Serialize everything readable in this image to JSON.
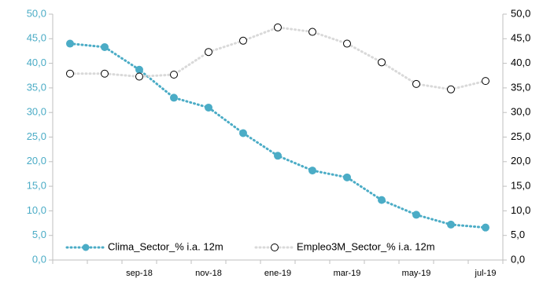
{
  "chart_data": {
    "type": "line",
    "categories": [
      null,
      null,
      "sep-18",
      null,
      "nov-18",
      null,
      "ene-19",
      null,
      "mar-19",
      null,
      "may-19",
      null,
      "jul-19"
    ],
    "series": [
      {
        "name": "Clima_Sector_% i.a. 12m",
        "color": "#4bacc6",
        "values": [
          44.0,
          43.3,
          38.7,
          33.0,
          31.0,
          25.8,
          21.2,
          18.2,
          16.8,
          12.2,
          9.2,
          7.2,
          6.6
        ]
      },
      {
        "name": "Empleo3M_Sector_% i.a. 12m",
        "color": "#d9d9d9",
        "axis": "y2",
        "values": [
          37.9,
          37.9,
          37.3,
          37.7,
          42.3,
          44.6,
          47.3,
          46.4,
          44.0,
          40.2,
          35.8,
          34.7,
          36.4
        ]
      }
    ],
    "ylim": [
      0,
      50
    ],
    "yticks": [
      {
        "value": 0,
        "label": "0,0"
      },
      {
        "value": 5,
        "label": "5,0"
      },
      {
        "value": 10,
        "label": "10,0"
      },
      {
        "value": 15,
        "label": "15,0"
      },
      {
        "value": 20,
        "label": "20,0"
      },
      {
        "value": 25,
        "label": "25,0"
      },
      {
        "value": 30,
        "label": "30,0"
      },
      {
        "value": 35,
        "label": "35,0"
      },
      {
        "value": 40,
        "label": "40,0"
      },
      {
        "value": 45,
        "label": "45,0"
      },
      {
        "value": 50,
        "label": "50,0"
      }
    ],
    "y2lim": [
      0,
      50
    ],
    "y2ticks": [
      {
        "value": 0,
        "label": "0,0"
      },
      {
        "value": 5,
        "label": "5,0"
      },
      {
        "value": 10,
        "label": "10,0"
      },
      {
        "value": 15,
        "label": "15,0"
      },
      {
        "value": 20,
        "label": "20,0"
      },
      {
        "value": 25,
        "label": "25,0"
      },
      {
        "value": 30,
        "label": "30,0"
      },
      {
        "value": 35,
        "label": "35,0"
      },
      {
        "value": 40,
        "label": "40,0"
      },
      {
        "value": 45,
        "label": "45,0"
      },
      {
        "value": 50,
        "label": "50,0"
      }
    ],
    "grid": false,
    "legend": "bottom"
  }
}
